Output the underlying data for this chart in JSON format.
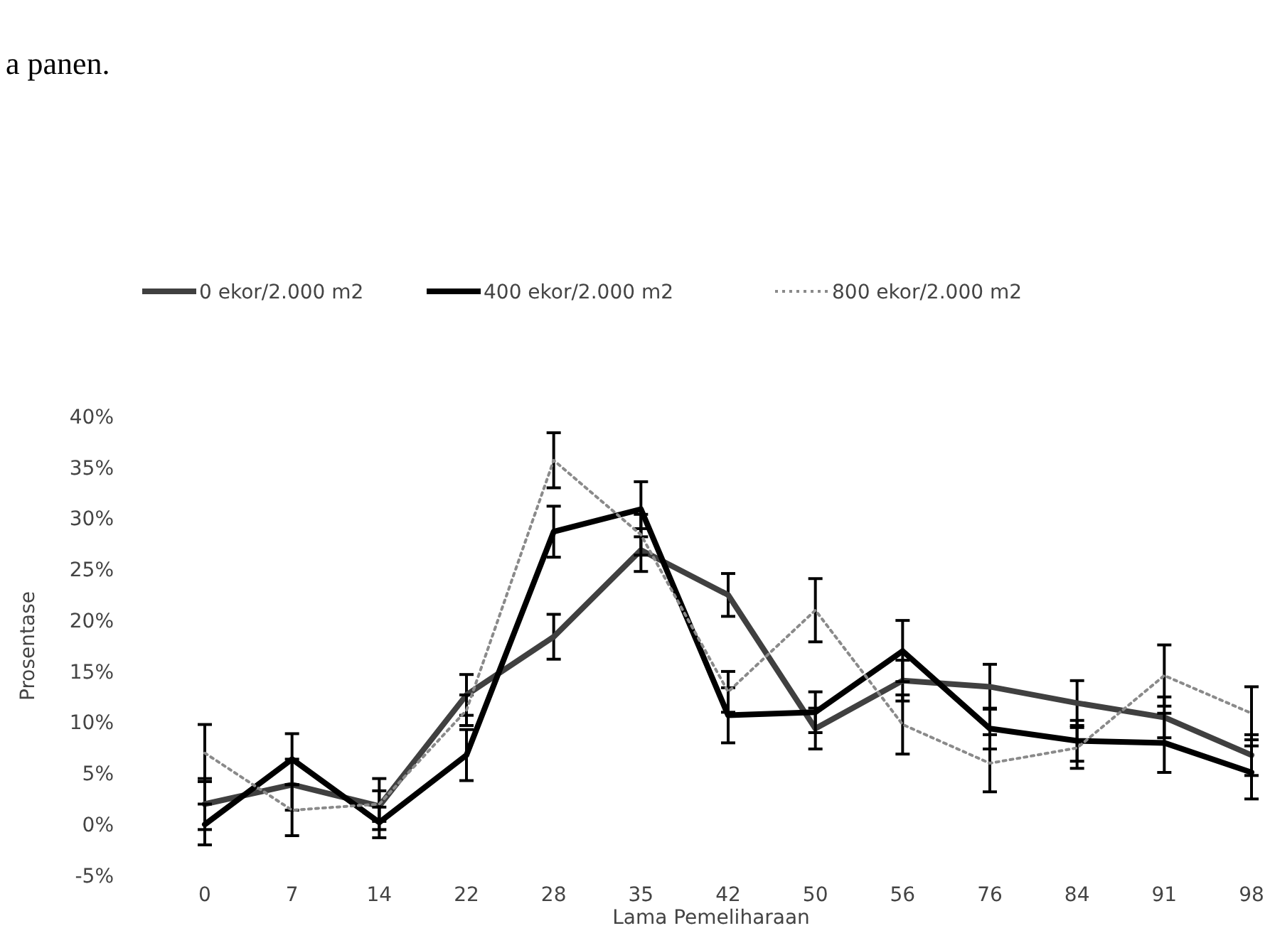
{
  "chart_data": {
    "type": "line",
    "annotations": [
      "a panen."
    ],
    "xlabel": "Lama Pemeliharaan",
    "ylabel": "Prosentase",
    "categories": [
      "0",
      "7",
      "14",
      "22",
      "28",
      "35",
      "42",
      "50",
      "56",
      "76",
      "84",
      "91",
      "98"
    ],
    "ylim": [
      -5,
      40
    ],
    "yticks": [
      {
        "value": -5,
        "label": "-5%"
      },
      {
        "value": 0,
        "label": "0%"
      },
      {
        "value": 5,
        "label": "5%"
      },
      {
        "value": 10,
        "label": "10%"
      },
      {
        "value": 15,
        "label": "15%"
      },
      {
        "value": 20,
        "label": "20%"
      },
      {
        "value": 25,
        "label": "25%"
      },
      {
        "value": 30,
        "label": "30%"
      },
      {
        "value": 35,
        "label": "35%"
      },
      {
        "value": 40,
        "label": "40%"
      }
    ],
    "legend": "top",
    "marker": "none",
    "series": [
      {
        "name": "0 ekor/2.000 m2",
        "color": "#404040",
        "line_style": "solid",
        "values": [
          2,
          3.9,
          1.8,
          12.7,
          18.4,
          26.9,
          22.5,
          9.4,
          14.1,
          13.5,
          11.9,
          10.5,
          6.8
        ],
        "errors": [
          2.5,
          2.5,
          1.5,
          2,
          2.2,
          2.1,
          2.1,
          2,
          2,
          2.2,
          2.2,
          2,
          2
        ]
      },
      {
        "name": "400 ekor/2.000 m2",
        "color": "#000000",
        "line_style": "solid",
        "values": [
          0,
          6.4,
          0.2,
          6.8,
          28.7,
          30.9,
          10.7,
          11,
          17,
          9.4,
          8.2,
          8,
          5.1
        ],
        "errors": [
          2,
          2.5,
          1.5,
          2.5,
          2.5,
          2.7,
          2.7,
          2,
          3,
          2,
          2,
          2.9,
          2.6
        ]
      },
      {
        "name": "800 ekor/2.000 m2",
        "color": "#8a8a8a",
        "line_style": "dotted",
        "values": [
          7,
          1.4,
          2,
          11.2,
          35.7,
          28.4,
          13,
          21,
          9.8,
          6,
          7.5,
          14.6,
          10.9
        ],
        "errors": [
          2.8,
          2.5,
          2.5,
          1.5,
          2.7,
          2,
          2,
          3.1,
          2.9,
          2.8,
          2,
          3,
          2.6
        ]
      }
    ]
  }
}
